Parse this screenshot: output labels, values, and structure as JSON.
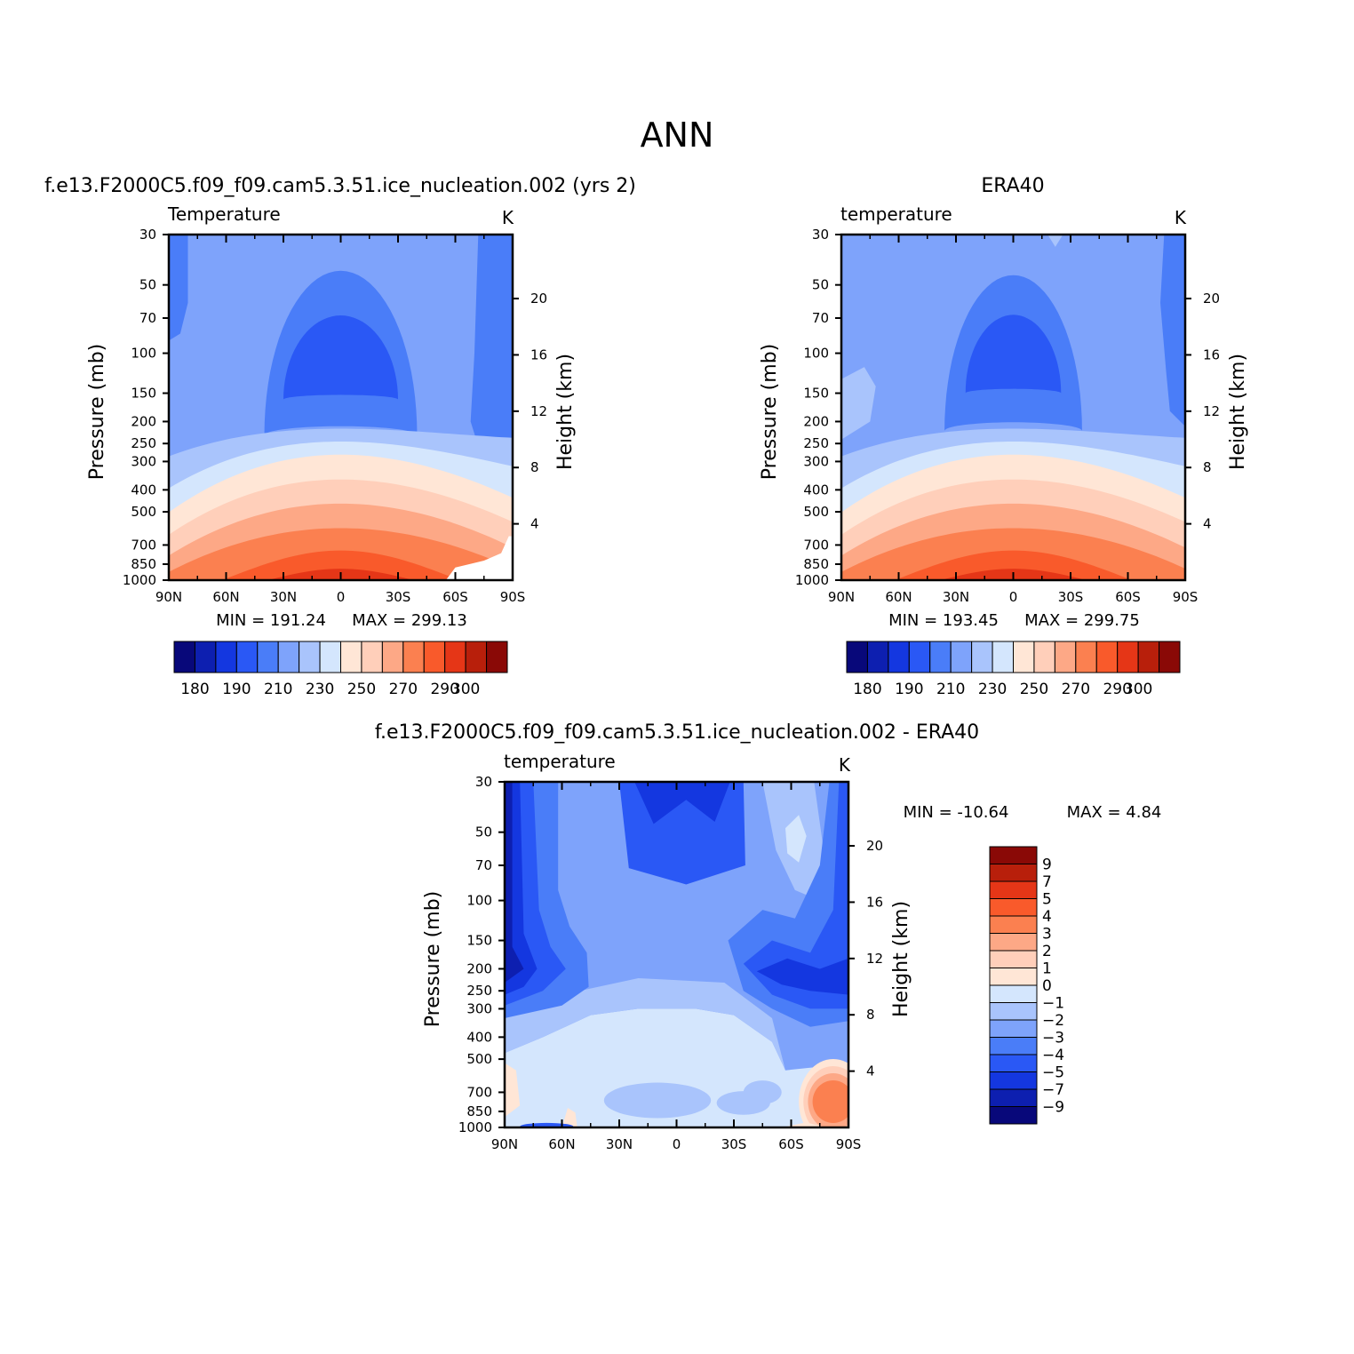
{
  "figure_title": "ANN",
  "palette": {
    "temperature": [
      "#08087a",
      "#0d1fb0",
      "#1437e0",
      "#2a58f5",
      "#4a7df8",
      "#7ea3fb",
      "#a9c4fc",
      "#d4e6fd",
      "#ffe6d6",
      "#ffcfba",
      "#fda886",
      "#fb8050",
      "#f95a2b",
      "#e53617",
      "#b81f0b",
      "#8a0906"
    ],
    "difference": [
      "#08087a",
      "#0d1fb0",
      "#1437e0",
      "#2a58f5",
      "#4a7df8",
      "#7ea3fb",
      "#a9c4fc",
      "#d4e6fd",
      "#ffe6d6",
      "#ffcfba",
      "#fda886",
      "#fb8050",
      "#f95a2b",
      "#e53617",
      "#b81f0b",
      "#8a0906"
    ]
  },
  "chart_data": [
    {
      "type": "heatmap",
      "title": "f.e13.F2000C5.f09_f09.cam5.3.51.ice_nucleation.002 (yrs 2)",
      "left_label": "Temperature",
      "right_label": "K",
      "xlabel": "",
      "ylabel": "Pressure (mb)",
      "y2label": "Height (km)",
      "x_ticks": [
        "90N",
        "60N",
        "30N",
        "0",
        "30S",
        "60S",
        "90S"
      ],
      "y_ticks": [
        30,
        50,
        70,
        100,
        150,
        200,
        250,
        300,
        400,
        500,
        700,
        850,
        1000
      ],
      "y2_ticks": [
        4,
        8,
        12,
        16,
        20
      ],
      "x_range": [
        90,
        -90
      ],
      "y_range": [
        1000,
        30
      ],
      "y_scale": "log",
      "min_label": "MIN = 191.24",
      "max_label": "MAX = 299.13",
      "levels": [
        180,
        185,
        190,
        200,
        210,
        220,
        230,
        240,
        250,
        260,
        270,
        280,
        290,
        295,
        300
      ],
      "colorbar_labels": [
        "180",
        "190",
        "210",
        "230",
        "250",
        "270",
        "290",
        "300"
      ],
      "contours": [
        {
          "level_index": 1,
          "shape": "dome",
          "center_lat": 0,
          "half_width_deg": 38,
          "top_p": 70,
          "bottom_p": 180
        },
        {
          "level_index": 3,
          "shape": "dome",
          "center_lat": 0,
          "half_width_deg": 48,
          "top_p": 40,
          "bottom_p": 230
        },
        {
          "level_index": 7,
          "shape": "arch",
          "center_lat": 0,
          "edge_p": [
            310,
            150
          ],
          "center_p": 220
        },
        {
          "level_index": 8,
          "shape": "arch",
          "center_lat": 0,
          "edge_p": [
            450,
            350
          ],
          "center_p": 260
        },
        {
          "level_index": 9,
          "shape": "arch",
          "center_lat": 0,
          "edge_p": [
            600,
            500
          ],
          "center_p": 300
        },
        {
          "level_index": 10,
          "shape": "arch",
          "center_lat": 0,
          "edge_p": [
            780,
            680
          ],
          "center_p": 400
        },
        {
          "level_index": 11,
          "shape": "arch",
          "center_lat": 0,
          "edge_p": [
            950,
            850
          ],
          "center_p": 520
        },
        {
          "level_index": 12,
          "shape": "arch",
          "center_lat": 0,
          "edge_p": [
            1000,
            1000
          ],
          "center_p": 680
        },
        {
          "level_index": 13,
          "shape": "arch",
          "center_lat": 0,
          "edge_p": [
            1000,
            1000
          ],
          "center_p": 850
        }
      ]
    },
    {
      "type": "heatmap",
      "title": "ERA40",
      "left_label": "temperature",
      "right_label": "K",
      "xlabel": "",
      "ylabel": "Pressure (mb)",
      "y2label": "Height (km)",
      "x_ticks": [
        "90N",
        "60N",
        "30N",
        "0",
        "30S",
        "60S",
        "90S"
      ],
      "y_ticks": [
        30,
        50,
        70,
        100,
        150,
        200,
        250,
        300,
        400,
        500,
        700,
        850,
        1000
      ],
      "y2_ticks": [
        4,
        8,
        12,
        16,
        20
      ],
      "x_range": [
        90,
        -90
      ],
      "y_range": [
        1000,
        30
      ],
      "y_scale": "log",
      "min_label": "MIN = 193.45",
      "max_label": "MAX = 299.75",
      "levels": [
        180,
        185,
        190,
        200,
        210,
        220,
        230,
        240,
        250,
        260,
        270,
        280,
        290,
        295,
        300
      ],
      "colorbar_labels": [
        "180",
        "190",
        "210",
        "230",
        "250",
        "270",
        "290",
        "300"
      ]
    },
    {
      "type": "heatmap",
      "title": "f.e13.F2000C5.f09_f09.cam5.3.51.ice_nucleation.002 - ERA40",
      "left_label": "temperature",
      "right_label": "K",
      "xlabel": "",
      "ylabel": "Pressure (mb)",
      "y2label": "Height (km)",
      "x_ticks": [
        "90N",
        "60N",
        "30N",
        "0",
        "30S",
        "60S",
        "90S"
      ],
      "y_ticks": [
        30,
        50,
        70,
        100,
        150,
        200,
        250,
        300,
        400,
        500,
        700,
        850,
        1000
      ],
      "y2_ticks": [
        4,
        8,
        12,
        16,
        20
      ],
      "x_range": [
        90,
        -90
      ],
      "y_range": [
        1000,
        30
      ],
      "y_scale": "log",
      "min_label": "MIN = -10.64",
      "max_label": "MAX = 4.84",
      "levels": [
        -9,
        -7,
        -5,
        -4,
        -3,
        -2,
        -1,
        0,
        1,
        2,
        3,
        4,
        5,
        7,
        9
      ],
      "colorbar_labels": [
        "9",
        "7",
        "5",
        "4",
        "3",
        "2",
        "1",
        "0",
        "-1",
        "-2",
        "-3",
        "-4",
        "-5",
        "-7",
        "-9"
      ]
    }
  ]
}
